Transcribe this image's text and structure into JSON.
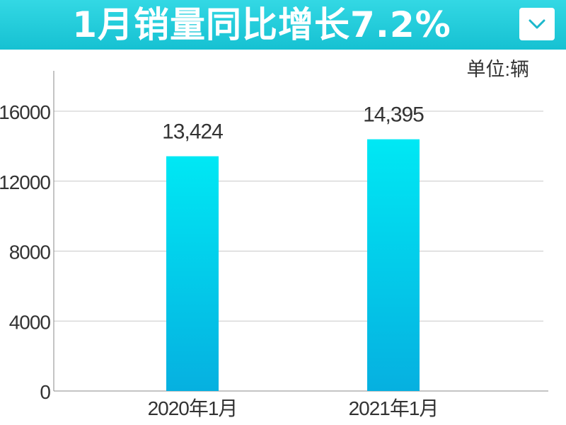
{
  "header": {
    "title": "1月销量同比增长7.2%",
    "menu_icon": "chevron-down-icon",
    "banner_color": "#1cc9d9"
  },
  "chart_data": {
    "type": "bar",
    "title": "1月销量同比增长7.2%",
    "unit_label": "单位:辆",
    "categories": [
      "2020年1月",
      "2021年1月"
    ],
    "values": [
      13424,
      14395
    ],
    "data_labels": [
      "13,424",
      "14,395"
    ],
    "yticks": [
      0,
      4000,
      8000,
      12000,
      16000
    ],
    "ylim": [
      0,
      16000
    ],
    "grid": true,
    "bar_gradient": [
      "#00e8f4",
      "#06b0e0"
    ],
    "grid_color": "#c8c8c8",
    "axis_color": "#888888"
  }
}
